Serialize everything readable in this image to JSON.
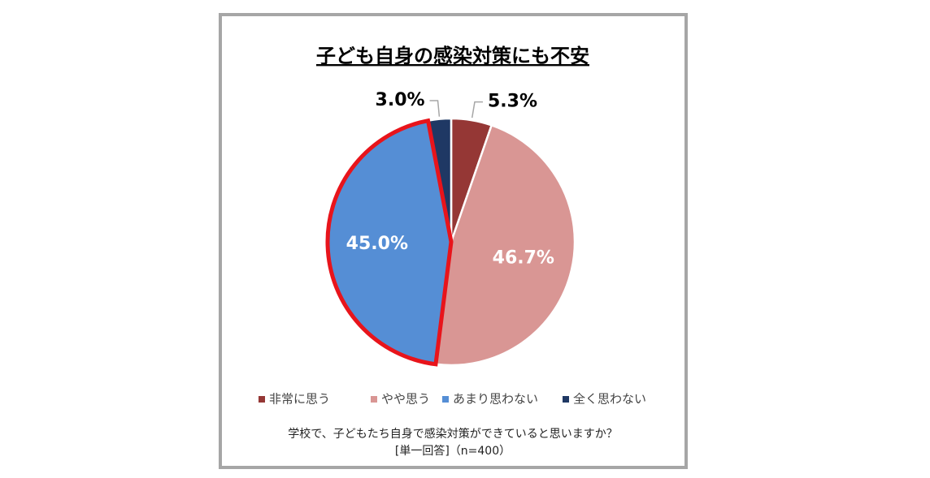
{
  "chart_data": {
    "type": "pie",
    "title": "子ども自身の感染対策にも不安",
    "categories": [
      "非常に思う",
      "やや思う",
      "あまり思わない",
      "全く思わない"
    ],
    "values": [
      5.3,
      46.7,
      45.0,
      3.0
    ],
    "value_labels": [
      "5.3%",
      "46.7%",
      "45.0%",
      "3.0%"
    ],
    "colors": [
      "#953735",
      "#d99694",
      "#558ed5",
      "#1f3864"
    ],
    "highlight": {
      "index": 2,
      "color": "#e8141b"
    },
    "legend": "bottom",
    "notes": [
      "学校で、子どもたち自身で感染対策ができていると思いますか？",
      "[単一回答]（n=400）"
    ]
  }
}
